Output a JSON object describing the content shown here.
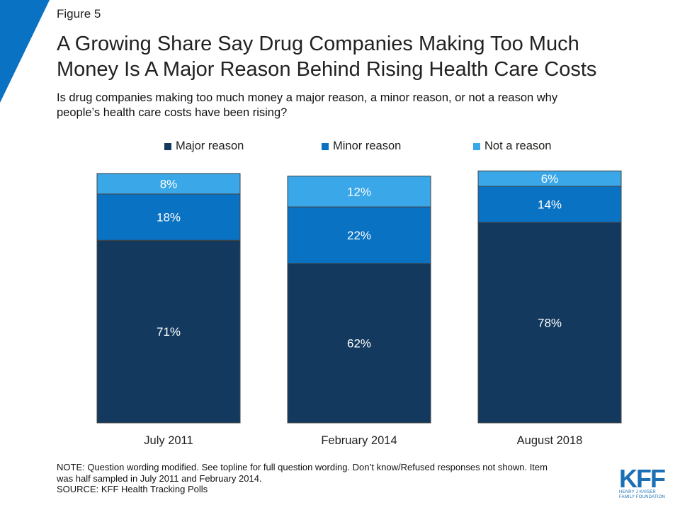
{
  "figure_label": "Figure 5",
  "title_line1": "A Growing Share Say Drug Companies Making Too Much",
  "title_line2": "Money Is A Major Reason Behind Rising Health Care Costs",
  "subtitle_line1": "Is drug companies making too much money a major reason, a minor reason, or not a reason why",
  "subtitle_line2": "people’s health care costs have been rising?",
  "colors": {
    "major": "#133a5e",
    "minor": "#0a72c2",
    "not": "#3aa7e8",
    "corner": "#0a72c2",
    "border": "#444444"
  },
  "chart_data": {
    "type": "bar",
    "stacked": true,
    "categories": [
      "July 2011",
      "February 2014",
      "August 2018"
    ],
    "series": [
      {
        "name": "Major reason",
        "values": [
          71,
          62,
          78
        ]
      },
      {
        "name": "Minor reason",
        "values": [
          18,
          22,
          14
        ]
      },
      {
        "name": "Not a reason",
        "values": [
          8,
          12,
          6
        ]
      }
    ],
    "data_labels": [
      [
        "71%",
        "62%",
        "78%"
      ],
      [
        "18%",
        "22%",
        "14%"
      ],
      [
        "8%",
        "12%",
        "6%"
      ]
    ],
    "ylim": [
      0,
      100
    ],
    "grid": false,
    "legend_position": "top"
  },
  "note_line1": "NOTE: Question wording modified. See topline for full question wording. Don’t know/Refused responses not shown. Item",
  "note_line2": "was half sampled in July 2011 and February 2014.",
  "source": "SOURCE: KFF Health Tracking Polls",
  "logo": {
    "text": "KFF",
    "sub_line1": "HENRY J KAISER",
    "sub_line2": "FAMILY FOUNDATION"
  }
}
